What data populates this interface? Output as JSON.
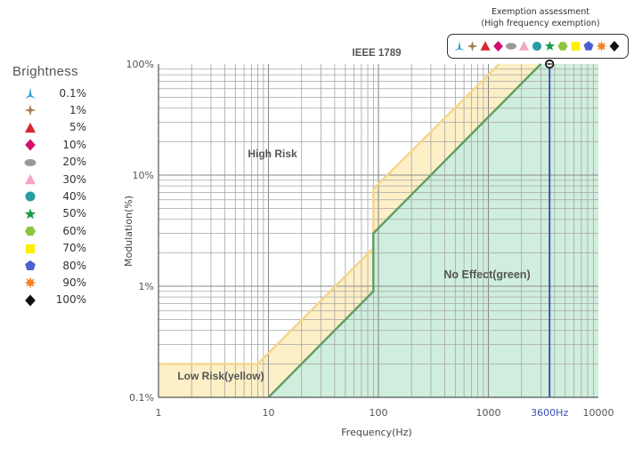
{
  "legend": {
    "title": "Brightness",
    "items": [
      {
        "label": "0.1%",
        "shape": "spike-triangle",
        "color": "#1f9ad6"
      },
      {
        "label": "1%",
        "shape": "four-point-star",
        "color": "#a67c52"
      },
      {
        "label": "5%",
        "shape": "triangle",
        "color": "#d7282f"
      },
      {
        "label": "10%",
        "shape": "diamond",
        "color": "#d0106a"
      },
      {
        "label": "20%",
        "shape": "ellipse",
        "color": "#9a9a9a"
      },
      {
        "label": "30%",
        "shape": "triangle",
        "color": "#f7a3c8"
      },
      {
        "label": "40%",
        "shape": "circle",
        "color": "#2a9ca3"
      },
      {
        "label": "50%",
        "shape": "five-point-star",
        "color": "#1b9c4a"
      },
      {
        "label": "60%",
        "shape": "hexagon",
        "color": "#8cc63f"
      },
      {
        "label": "70%",
        "shape": "square",
        "color": "#ffee00"
      },
      {
        "label": "80%",
        "shape": "pentagon",
        "color": "#4a5fd1"
      },
      {
        "label": "90%",
        "shape": "burst-star",
        "color": "#f58220"
      },
      {
        "label": "100%",
        "shape": "diamond",
        "color": "#111111"
      }
    ]
  },
  "exemption": {
    "title_line1": "Exemption assessment",
    "title_line2": "(High frequency exemption)"
  },
  "chart_data": {
    "type": "area",
    "title": "IEEE 1789",
    "xlabel": "Frequency(Hz)",
    "ylabel": "Modulation(%)",
    "x_scale": "log",
    "y_scale": "log",
    "xlim": [
      1,
      10000
    ],
    "ylim": [
      0.1,
      100
    ],
    "x_ticks": [
      "1",
      "10",
      "100",
      "1000",
      "10000"
    ],
    "y_ticks": [
      "0.1%",
      "1%",
      "10%",
      "100%"
    ],
    "grid": true,
    "regions": [
      {
        "name": "High Risk"
      },
      {
        "name": "Low Risk(yellow)",
        "color": "#fdefc6",
        "border_color": "#f5d58b"
      },
      {
        "name": "No Effect(green)",
        "color": "#cfeedd",
        "border_color": "#5e9e64"
      }
    ],
    "boundaries": {
      "low_risk_upper": [
        [
          1,
          0.2
        ],
        [
          8,
          0.2
        ],
        [
          90,
          2.2
        ],
        [
          90,
          7.5
        ],
        [
          1250,
          100
        ]
      ],
      "no_effect_upper": [
        [
          10,
          0.1
        ],
        [
          90,
          0.9
        ],
        [
          90,
          3
        ],
        [
          3000,
          100
        ]
      ]
    },
    "marker": {
      "label": "3600Hz",
      "x": 3600,
      "color": "#3a4fb5"
    },
    "measurement": {
      "x": 3600,
      "y": 100
    }
  }
}
